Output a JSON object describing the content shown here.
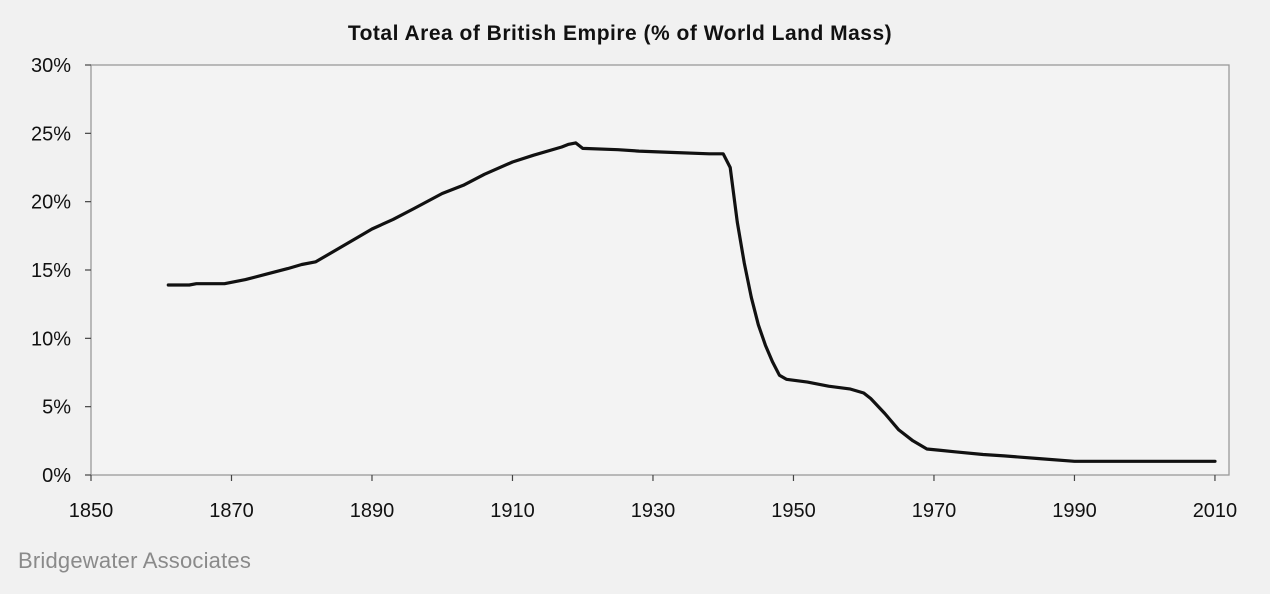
{
  "chart_data": {
    "type": "line",
    "title": "Total Area of British Empire (% of World Land Mass)",
    "xlabel": "",
    "ylabel": "",
    "xlim": [
      1850,
      2012
    ],
    "ylim": [
      0,
      30
    ],
    "y_unit": "%",
    "grid": false,
    "line_color": "#111111",
    "x_ticks": [
      "1850",
      "1870",
      "1890",
      "1910",
      "1930",
      "1950",
      "1970",
      "1990",
      "2010"
    ],
    "y_ticks": [
      "0%",
      "5%",
      "10%",
      "15%",
      "20%",
      "25%",
      "30%"
    ],
    "series": [
      {
        "points": [
          [
            1861,
            13.9
          ],
          [
            1864,
            13.9
          ],
          [
            1865,
            14.0
          ],
          [
            1869,
            14.0
          ],
          [
            1870,
            14.1
          ],
          [
            1872,
            14.3
          ],
          [
            1875,
            14.7
          ],
          [
            1878,
            15.1
          ],
          [
            1880,
            15.4
          ],
          [
            1882,
            15.6
          ],
          [
            1885,
            16.5
          ],
          [
            1888,
            17.4
          ],
          [
            1890,
            18.0
          ],
          [
            1893,
            18.7
          ],
          [
            1896,
            19.5
          ],
          [
            1900,
            20.6
          ],
          [
            1903,
            21.2
          ],
          [
            1906,
            22.0
          ],
          [
            1910,
            22.9
          ],
          [
            1913,
            23.4
          ],
          [
            1917,
            24.0
          ],
          [
            1918,
            24.2
          ],
          [
            1919,
            24.3
          ],
          [
            1920,
            23.9
          ],
          [
            1925,
            23.8
          ],
          [
            1928,
            23.7
          ],
          [
            1933,
            23.6
          ],
          [
            1938,
            23.5
          ],
          [
            1940,
            23.5
          ],
          [
            1941,
            22.5
          ],
          [
            1942,
            18.5
          ],
          [
            1943,
            15.5
          ],
          [
            1944,
            13.0
          ],
          [
            1945,
            11.0
          ],
          [
            1946,
            9.5
          ],
          [
            1947,
            8.3
          ],
          [
            1948,
            7.3
          ],
          [
            1949,
            7.0
          ],
          [
            1952,
            6.8
          ],
          [
            1955,
            6.5
          ],
          [
            1958,
            6.3
          ],
          [
            1960,
            6.0
          ],
          [
            1961,
            5.6
          ],
          [
            1963,
            4.5
          ],
          [
            1965,
            3.3
          ],
          [
            1967,
            2.5
          ],
          [
            1969,
            1.9
          ],
          [
            1971,
            1.8
          ],
          [
            1973,
            1.7
          ],
          [
            1977,
            1.5
          ],
          [
            1980,
            1.4
          ],
          [
            1985,
            1.2
          ],
          [
            1990,
            1.0
          ],
          [
            2000,
            1.0
          ],
          [
            2005,
            1.0
          ],
          [
            2010,
            1.0
          ]
        ]
      }
    ]
  },
  "footer": {
    "source": "Bridgewater Associates"
  }
}
